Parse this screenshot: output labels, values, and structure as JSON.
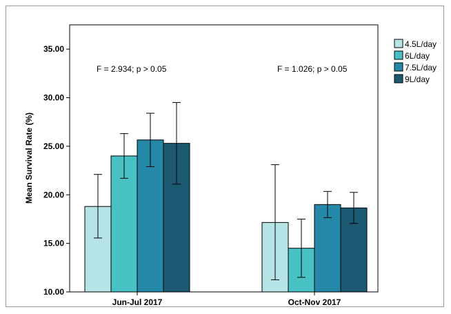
{
  "chart_data": {
    "type": "bar",
    "categories": [
      "Jun-Jul 2017",
      "Oct-Nov 2017"
    ],
    "ylabel": "Mean Survival Rate (%)",
    "xlabel": "",
    "ylim": [
      10,
      37.5
    ],
    "yticks": [
      "10.00",
      "15.00",
      "20.00",
      "25.00",
      "30.00",
      "35.00"
    ],
    "series": [
      {
        "name": "4.5L/day",
        "color": "#b6e4e6",
        "values": [
          18.8,
          17.15
        ],
        "err_low": [
          15.55,
          11.25
        ],
        "err_high": [
          22.1,
          23.1
        ]
      },
      {
        "name": "6L/day",
        "color": "#47c1c3",
        "values": [
          24.0,
          14.5
        ],
        "err_low": [
          21.7,
          11.5
        ],
        "err_high": [
          26.3,
          17.5
        ]
      },
      {
        "name": "7.5L/day",
        "color": "#2588a9",
        "values": [
          25.65,
          19.0
        ],
        "err_low": [
          22.9,
          17.65
        ],
        "err_high": [
          28.4,
          20.35
        ]
      },
      {
        "name": "9L/day",
        "color": "#1b5a72",
        "values": [
          25.3,
          18.65
        ],
        "err_low": [
          21.1,
          17.05
        ],
        "err_high": [
          29.5,
          20.25
        ]
      }
    ],
    "annotations": [
      "F = 2.934; p > 0.05",
      "F = 1.026; p > 0.05"
    ],
    "legend_position": "right",
    "grid": false
  }
}
